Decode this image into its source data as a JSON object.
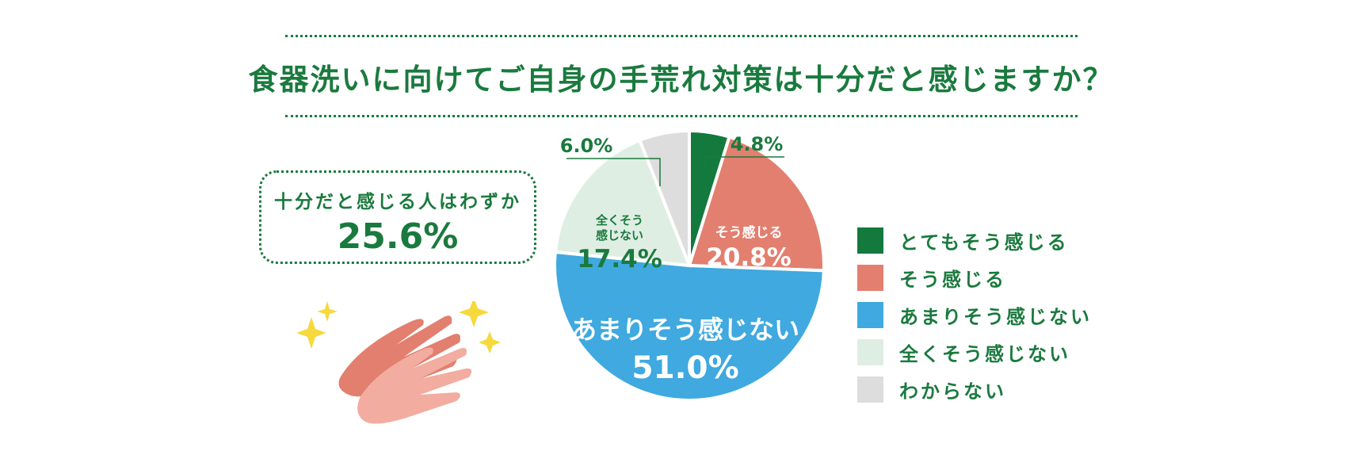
{
  "title": "食器洗いに向けてご自身の手荒れ対策は十分だと感じますか？",
  "callout": {
    "text": "十分だと感じる人はわずか",
    "value": "25.6%"
  },
  "colors": {
    "accent": "#1a7a3e",
    "dotline": "#1a7a3e"
  },
  "chart_data": {
    "type": "pie",
    "title": "食器洗いに向けてご自身の手荒れ対策は十分だと感じますか？",
    "start_angle_deg": 0,
    "direction": "clockwise",
    "slices": [
      {
        "label": "とてもそう感じる",
        "value": 4.8,
        "display": "4.8%",
        "color": "#14793d",
        "text_color": "#1a7a3e",
        "inner_label": "",
        "label_position": "outside"
      },
      {
        "label": "そう感じる",
        "value": 20.8,
        "display": "20.8%",
        "color": "#e27f6f",
        "text_color": "#ffffff",
        "inner_label": "そう感じる",
        "label_position": "inside"
      },
      {
        "label": "あまりそう感じない",
        "value": 51.0,
        "display": "51.0%",
        "color": "#3fa9e0",
        "text_color": "#ffffff",
        "inner_label": "あまりそう感じない",
        "label_position": "inside"
      },
      {
        "label": "全くそう感じない",
        "value": 17.4,
        "display": "17.4%",
        "color": "#dfeee3",
        "text_color": "#1a7a3e",
        "inner_label": "全くそう感じない",
        "label_position": "inside"
      },
      {
        "label": "わからない",
        "value": 6.0,
        "display": "6.0%",
        "color": "#dddddd",
        "text_color": "#1a7a3e",
        "inner_label": "",
        "label_position": "outside"
      }
    ],
    "legend": {
      "placement": "right"
    }
  }
}
